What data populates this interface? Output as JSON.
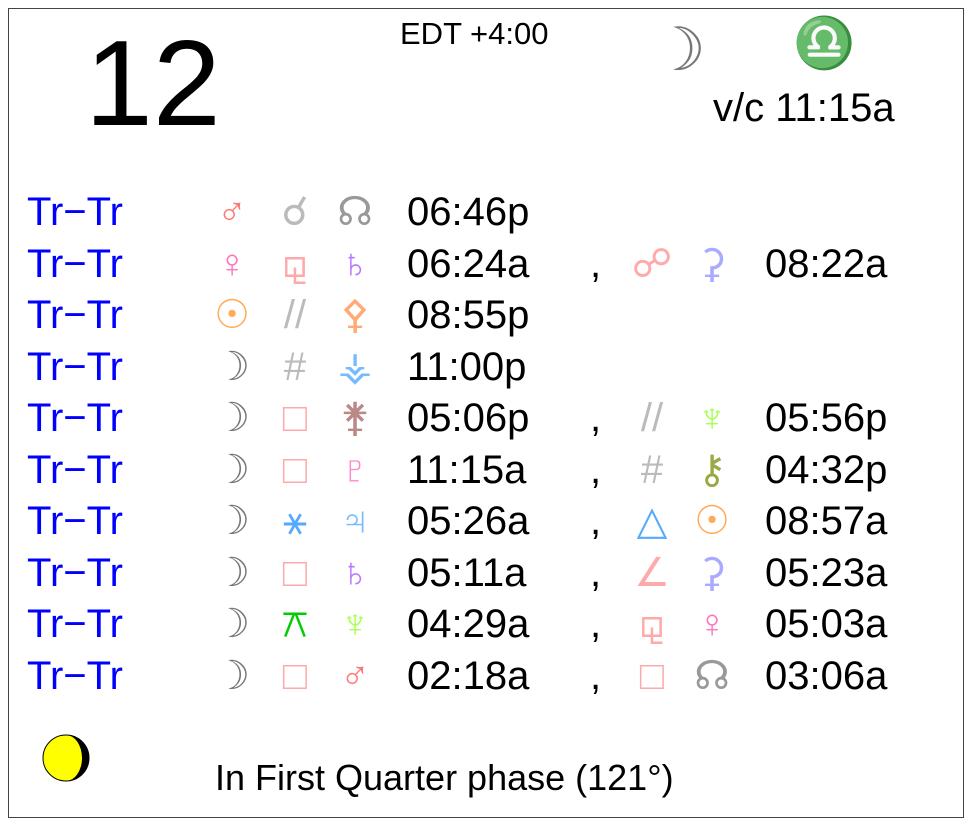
{
  "header": {
    "day": "12",
    "timezone": "EDT +4:00",
    "moon_icon": "moon-icon",
    "moon_glyph": "☽",
    "sign_icon": "libra-icon",
    "sign_glyph": "♎",
    "void_of_course": "v/c 11:15a"
  },
  "colors": {
    "label": "#0000ff",
    "moon": "#777777",
    "libra": "#77ffff"
  },
  "aspects": [
    {
      "label": "Tr−Tr",
      "p1": {
        "g": "♂",
        "c": "#ff7777"
      },
      "a": {
        "g": "☌",
        "c": "#bbbbbb"
      },
      "p2": {
        "g": "☊",
        "c": "#999999"
      },
      "time": "06:46p"
    },
    {
      "label": "Tr−Tr",
      "p1": {
        "g": "♀",
        "c": "#ff77bb"
      },
      "a": {
        "g": "⚼",
        "c": "#ffaaaa"
      },
      "p2": {
        "g": "♄",
        "c": "#bb77ff"
      },
      "time": "06:24a",
      "sep": ",",
      "a2": {
        "g": "☍",
        "c": "#ffaaaa"
      },
      "p3": {
        "g": "⚳",
        "c": "#aaaaff"
      },
      "time2": "08:22a"
    },
    {
      "label": "Tr−Tr",
      "p1": {
        "g": "☉",
        "c": "#ffaa55"
      },
      "a": {
        "g": "//",
        "c": "#bbbbbb"
      },
      "p2": {
        "g": "⚴",
        "c": "#ffaa77"
      },
      "time": "08:55p"
    },
    {
      "label": "Tr−Tr",
      "p1": {
        "g": "☽",
        "c": "#777777"
      },
      "a": {
        "g": "#",
        "c": "#bbbbbb"
      },
      "p2": {
        "g": "⚶",
        "c": "#77bbff"
      },
      "time": "11:00p"
    },
    {
      "label": "Tr−Tr",
      "p1": {
        "g": "☽",
        "c": "#777777"
      },
      "a": {
        "g": "□",
        "c": "#ffaaaa"
      },
      "p2": {
        "g": "⚵",
        "c": "#bb8888"
      },
      "time": "05:06p",
      "sep": ",",
      "a2": {
        "g": "//",
        "c": "#bbbbbb"
      },
      "p3": {
        "g": "♆",
        "c": "#aaff55"
      },
      "time2": "05:56p"
    },
    {
      "label": "Tr−Tr",
      "p1": {
        "g": "☽",
        "c": "#777777"
      },
      "a": {
        "g": "□",
        "c": "#ffaaaa"
      },
      "p2": {
        "g": "♇",
        "c": "#ff88cc"
      },
      "time": "11:15a",
      "sep": ",",
      "a2": {
        "g": "#",
        "c": "#bbbbbb"
      },
      "p3": {
        "g": "⚷",
        "c": "#99aa44"
      },
      "time2": "04:32p"
    },
    {
      "label": "Tr−Tr",
      "p1": {
        "g": "☽",
        "c": "#777777"
      },
      "a": {
        "g": "⚹",
        "c": "#55aaff"
      },
      "p2": {
        "g": "♃",
        "c": "#77bbff"
      },
      "time": "05:26a",
      "sep": ",",
      "a2": {
        "g": "△",
        "c": "#55aaff"
      },
      "p3": {
        "g": "☉",
        "c": "#ffaa55"
      },
      "time2": "08:57a"
    },
    {
      "label": "Tr−Tr",
      "p1": {
        "g": "☽",
        "c": "#777777"
      },
      "a": {
        "g": "□",
        "c": "#ffaaaa"
      },
      "p2": {
        "g": "♄",
        "c": "#bb77ff"
      },
      "time": "05:11a",
      "sep": ",",
      "a2": {
        "g": "∠",
        "c": "#ffaaaa"
      },
      "p3": {
        "g": "⚳",
        "c": "#aaaaff"
      },
      "time2": "05:23a"
    },
    {
      "label": "Tr−Tr",
      "p1": {
        "g": "☽",
        "c": "#777777"
      },
      "a": {
        "g": "⚻",
        "c": "#00cc00"
      },
      "p2": {
        "g": "♆",
        "c": "#aaff55"
      },
      "time": "04:29a",
      "sep": ",",
      "a2": {
        "g": "⚼",
        "c": "#ffaaaa"
      },
      "p3": {
        "g": "♀",
        "c": "#ff77bb"
      },
      "time2": "05:03a"
    },
    {
      "label": "Tr−Tr",
      "p1": {
        "g": "☽",
        "c": "#777777"
      },
      "a": {
        "g": "□",
        "c": "#ffaaaa"
      },
      "p2": {
        "g": "♂",
        "c": "#ff7777"
      },
      "time": "02:18a",
      "sep": ",",
      "a2": {
        "g": "□",
        "c": "#ffaaaa"
      },
      "p3": {
        "g": "☊",
        "c": "#999999"
      },
      "time2": "03:06a"
    }
  ],
  "footer": {
    "phase_icon": "waxing-moon-phase-icon",
    "phase_text": "In First Quarter phase (121°)"
  }
}
